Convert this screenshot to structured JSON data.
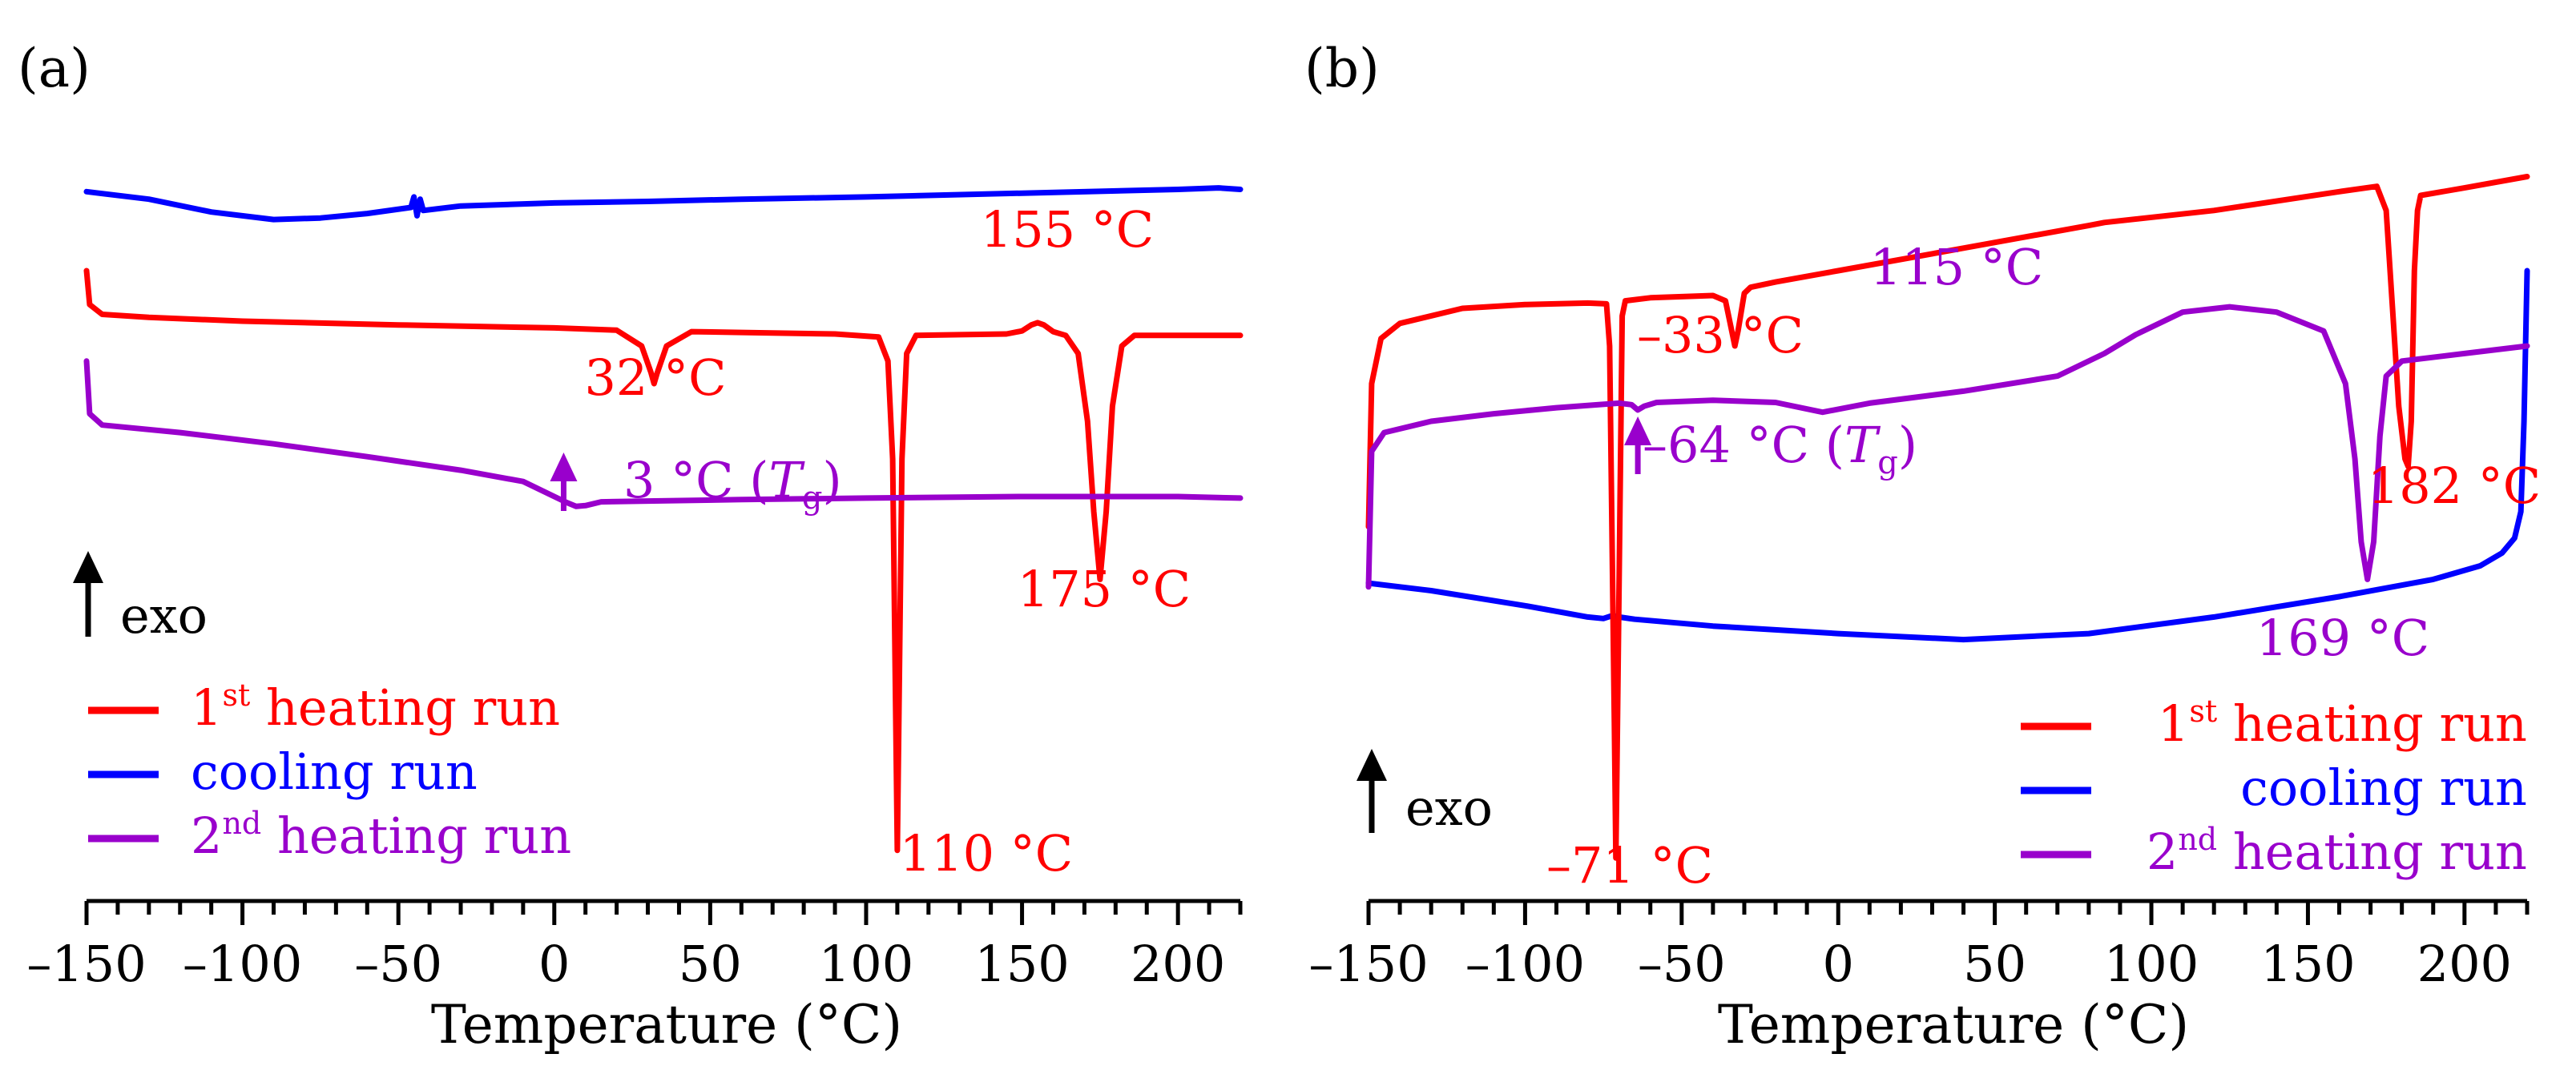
{
  "colors": {
    "heating1": "#ff0000",
    "cooling": "#0000ff",
    "heating2": "#9900cc",
    "axis": "#000000"
  },
  "chart_data": [
    {
      "type": "line",
      "panel_label": "(a)",
      "xlabel": "Temperature (°C)",
      "ylabel": "",
      "xlim": [
        -150,
        220
      ],
      "xticks": [
        -150,
        -100,
        -50,
        0,
        50,
        100,
        150,
        200
      ],
      "xtick_labels": [
        "–150",
        "–100",
        "–50",
        "0",
        "50",
        "100",
        "150",
        "200"
      ],
      "minor_step": 10,
      "ylim": [
        0,
        1
      ],
      "exo_label": "exo",
      "legend_position": "bottom-left",
      "series": [
        {
          "name": "cooling run",
          "color_key": "cooling",
          "x": [
            -150,
            -130,
            -110,
            -90,
            -75,
            -60,
            -46,
            -45,
            -44,
            -43,
            -42,
            -30,
            0,
            30,
            60,
            100,
            150,
            200,
            213,
            220
          ],
          "y": [
            0.905,
            0.895,
            0.878,
            0.868,
            0.87,
            0.876,
            0.884,
            0.898,
            0.873,
            0.895,
            0.88,
            0.886,
            0.89,
            0.892,
            0.895,
            0.898,
            0.903,
            0.908,
            0.91,
            0.908
          ]
        },
        {
          "name": "1st heating run",
          "color_key": "heating1",
          "x": [
            -150,
            -149,
            -145,
            -130,
            -100,
            -50,
            0,
            20,
            28,
            31,
            32,
            33,
            36,
            44,
            60,
            90,
            104,
            107,
            108.5,
            110,
            111.5,
            113,
            116,
            130,
            145,
            150,
            153,
            155,
            157,
            160,
            164,
            168,
            171,
            173,
            175,
            177,
            179,
            182,
            186,
            200,
            220
          ],
          "y": [
            0.8,
            0.755,
            0.742,
            0.738,
            0.733,
            0.728,
            0.724,
            0.721,
            0.7,
            0.665,
            0.65,
            0.664,
            0.7,
            0.719,
            0.718,
            0.716,
            0.712,
            0.68,
            0.55,
            0.03,
            0.55,
            0.69,
            0.714,
            0.715,
            0.716,
            0.72,
            0.728,
            0.731,
            0.728,
            0.719,
            0.714,
            0.69,
            0.6,
            0.48,
            0.39,
            0.48,
            0.62,
            0.7,
            0.714,
            0.714,
            0.714
          ]
        },
        {
          "name": "2nd heating run",
          "color_key": "heating2",
          "x": [
            -150,
            -149,
            -145,
            -120,
            -90,
            -60,
            -30,
            -10,
            0,
            4,
            7,
            10,
            15,
            30,
            60,
            100,
            150,
            200,
            220
          ],
          "y": [
            0.68,
            0.61,
            0.595,
            0.585,
            0.57,
            0.553,
            0.535,
            0.52,
            0.5,
            0.492,
            0.487,
            0.488,
            0.493,
            0.494,
            0.496,
            0.498,
            0.5,
            0.5,
            0.498
          ]
        }
      ],
      "annotations": [
        {
          "text": "155 °C",
          "color_key": "heating1"
        },
        {
          "text": "32 °C",
          "color_key": "heating1"
        },
        {
          "text": "3 °C (",
          "sym": "T",
          "sub": "g",
          "close": ")",
          "color_key": "heating2",
          "arrow_at": 3
        },
        {
          "text": "175 °C",
          "color_key": "heating1"
        },
        {
          "text": "110 °C",
          "color_key": "heating1"
        }
      ]
    },
    {
      "type": "line",
      "panel_label": "(b)",
      "xlabel": "Temperature (°C)",
      "ylabel": "",
      "xlim": [
        -150,
        220
      ],
      "xticks": [
        -150,
        -100,
        -50,
        0,
        50,
        100,
        150,
        200
      ],
      "xtick_labels": [
        "–150",
        "–100",
        "–50",
        "0",
        "50",
        "100",
        "150",
        "200"
      ],
      "minor_step": 10,
      "ylim": [
        0,
        1
      ],
      "exo_label": "exo",
      "legend_position": "bottom-right",
      "series": [
        {
          "name": "cooling run",
          "color_key": "cooling",
          "x": [
            -150,
            -130,
            -100,
            -80,
            -75,
            -72,
            -70,
            -65,
            -40,
            0,
            40,
            80,
            120,
            160,
            190,
            205,
            212,
            216,
            218,
            219,
            220
          ],
          "y": [
            0.385,
            0.375,
            0.355,
            0.34,
            0.338,
            0.342,
            0.34,
            0.337,
            0.328,
            0.318,
            0.31,
            0.318,
            0.34,
            0.367,
            0.39,
            0.408,
            0.425,
            0.445,
            0.48,
            0.6,
            0.8
          ]
        },
        {
          "name": "1st heating run",
          "color_key": "heating1",
          "x": [
            -150,
            -149,
            -146,
            -140,
            -120,
            -100,
            -80,
            -74,
            -73,
            -71.5,
            -71,
            -70.5,
            -69,
            -68,
            -60,
            -40,
            -36,
            -34,
            -33,
            -32,
            -30,
            -28,
            -20,
            0,
            40,
            80,
            85,
            120,
            160,
            172,
            175,
            177,
            179,
            181,
            182,
            183,
            184,
            185,
            186,
            200,
            220
          ],
          "y": [
            0.46,
            0.65,
            0.71,
            0.73,
            0.75,
            0.755,
            0.757,
            0.756,
            0.7,
            0.2,
            0.02,
            0.2,
            0.74,
            0.76,
            0.764,
            0.767,
            0.76,
            0.72,
            0.7,
            0.72,
            0.77,
            0.778,
            0.785,
            0.8,
            0.83,
            0.86,
            0.864,
            0.88,
            0.905,
            0.912,
            0.88,
            0.75,
            0.62,
            0.55,
            0.54,
            0.6,
            0.8,
            0.88,
            0.9,
            0.91,
            0.925
          ]
        },
        {
          "name": "2nd heating run",
          "color_key": "heating2",
          "x": [
            -150,
            -149,
            -145,
            -130,
            -110,
            -90,
            -70,
            -66,
            -64,
            -62,
            -58,
            -40,
            -20,
            -5,
            10,
            40,
            70,
            85,
            95,
            110,
            125,
            140,
            155,
            162,
            165,
            167,
            169,
            171,
            173,
            175,
            180,
            200,
            220
          ],
          "y": [
            0.38,
            0.56,
            0.585,
            0.6,
            0.61,
            0.618,
            0.624,
            0.622,
            0.615,
            0.62,
            0.625,
            0.628,
            0.625,
            0.612,
            0.624,
            0.64,
            0.66,
            0.69,
            0.715,
            0.745,
            0.752,
            0.745,
            0.72,
            0.65,
            0.55,
            0.44,
            0.39,
            0.44,
            0.58,
            0.66,
            0.68,
            0.69,
            0.7
          ]
        }
      ],
      "annotations": [
        {
          "text": "–33 °C",
          "color_key": "heating1"
        },
        {
          "text": "115 °C",
          "color_key": "heating2"
        },
        {
          "text": "–64 °C (",
          "sym": "T",
          "sub": "g",
          "close": ")",
          "color_key": "heating2",
          "arrow_at": -64
        },
        {
          "text": "182 °C",
          "color_key": "heating1"
        },
        {
          "text": "169 °C",
          "color_key": "heating2"
        },
        {
          "text": "–71 °C",
          "color_key": "heating1"
        }
      ]
    }
  ],
  "legend": [
    {
      "base": "1",
      "sup": "st",
      "rest": " heating run",
      "color_key": "heating1"
    },
    {
      "base": "",
      "sup": "",
      "rest": "cooling run",
      "color_key": "cooling"
    },
    {
      "base": "2",
      "sup": "nd",
      "rest": " heating run",
      "color_key": "heating2"
    }
  ]
}
